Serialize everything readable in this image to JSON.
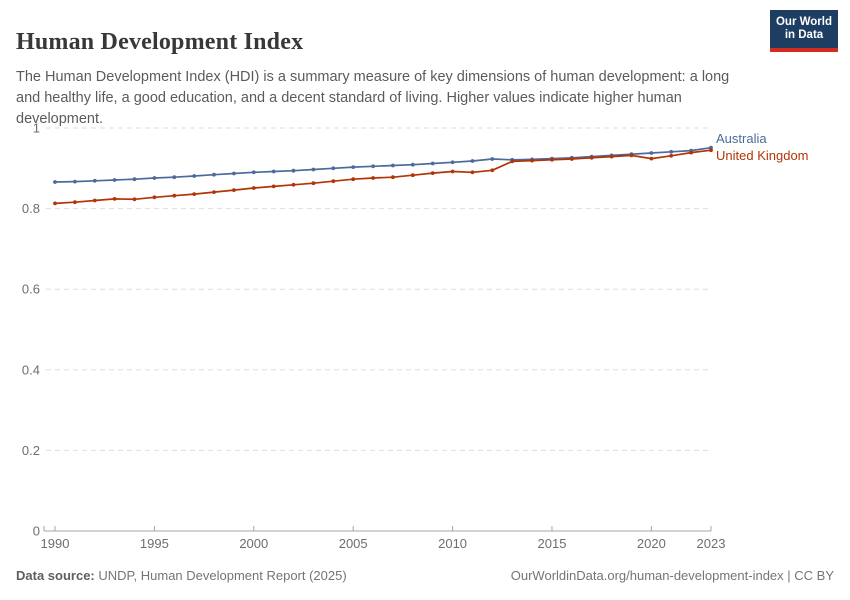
{
  "header": {
    "title": "Human Development Index",
    "subtitle": "The Human Development Index (HDI) is a summary measure of key dimensions of human development: a long and healthy life, a good education, and a decent standard of living. Higher values indicate higher human development.",
    "logo": {
      "line1": "Our World",
      "line2": "in Data"
    }
  },
  "chart_data": {
    "type": "line",
    "title": "Human Development Index",
    "x": [
      1990,
      1991,
      1992,
      1993,
      1994,
      1995,
      1996,
      1997,
      1998,
      1999,
      2000,
      2001,
      2002,
      2003,
      2004,
      2005,
      2006,
      2007,
      2008,
      2009,
      2010,
      2011,
      2012,
      2013,
      2014,
      2015,
      2016,
      2017,
      2018,
      2019,
      2020,
      2021,
      2022,
      2023
    ],
    "series": [
      {
        "name": "Australia",
        "color": "#4C6A9C",
        "values": [
          0.866,
          0.867,
          0.869,
          0.871,
          0.873,
          0.876,
          0.878,
          0.881,
          0.884,
          0.887,
          0.89,
          0.892,
          0.894,
          0.897,
          0.9,
          0.903,
          0.905,
          0.907,
          0.909,
          0.912,
          0.915,
          0.918,
          0.923,
          0.921,
          0.922,
          0.924,
          0.926,
          0.929,
          0.932,
          0.935,
          0.938,
          0.941,
          0.944,
          0.951
        ]
      },
      {
        "name": "United Kingdom",
        "color": "#B13507",
        "values": [
          0.813,
          0.816,
          0.82,
          0.824,
          0.823,
          0.828,
          0.832,
          0.836,
          0.841,
          0.846,
          0.851,
          0.855,
          0.859,
          0.863,
          0.868,
          0.873,
          0.876,
          0.878,
          0.883,
          0.888,
          0.892,
          0.89,
          0.895,
          0.917,
          0.919,
          0.921,
          0.923,
          0.926,
          0.929,
          0.932,
          0.924,
          0.931,
          0.939,
          0.945
        ]
      }
    ],
    "xlabel": "",
    "ylabel": "",
    "ylim": [
      0,
      1
    ],
    "yticks": [
      0,
      0.2,
      0.4,
      0.6,
      0.8,
      1
    ],
    "ytick_labels": [
      "0",
      "0.2",
      "0.4",
      "0.6",
      "0.8",
      "1"
    ],
    "xticks": [
      1990,
      1995,
      2000,
      2005,
      2010,
      2015,
      2020,
      2023
    ],
    "grid": "horizontal-dashed",
    "legend_position": "right-of-line-end",
    "marker": "dot"
  },
  "footer": {
    "source_label": "Data source:",
    "source_text": " UNDP, Human Development Report (2025)",
    "right_text": "OurWorldinData.org/human-development-index | CC BY"
  },
  "colors": {
    "australia_line": "#4C6A9C",
    "uk_line": "#B13507",
    "gridline": "#dedede",
    "axis": "#a5a5a5",
    "tick_label": "#6e6e6e",
    "logo_bg": "#1d3d63",
    "logo_red": "#d42b21"
  }
}
